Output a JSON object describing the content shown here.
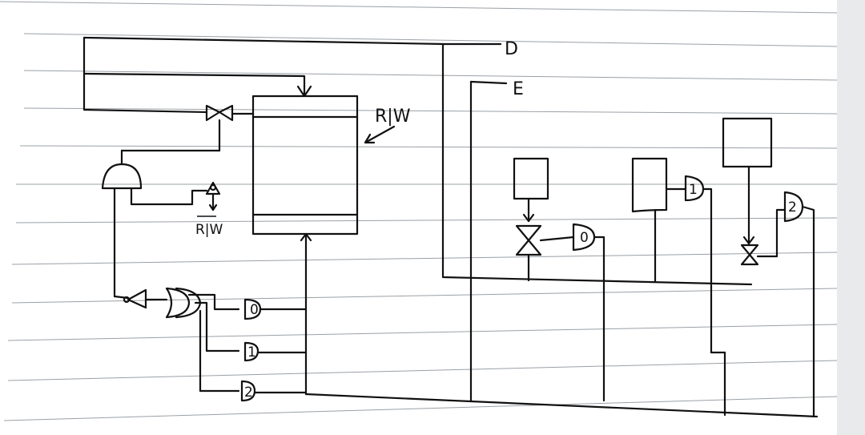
{
  "labels": {
    "D": "D",
    "E": "E",
    "rw_main": "R|W",
    "rw_bar": "R|W",
    "g1": "0",
    "g2": "1",
    "g3": "2",
    "right_gate_a": "0",
    "right_gate_b": "1",
    "right_gate_c": "2"
  },
  "colors": {
    "paper": "#ffffff",
    "ruling": "#9aa0a6",
    "ink": "#111111",
    "right_margin": "#e9eaeb"
  }
}
